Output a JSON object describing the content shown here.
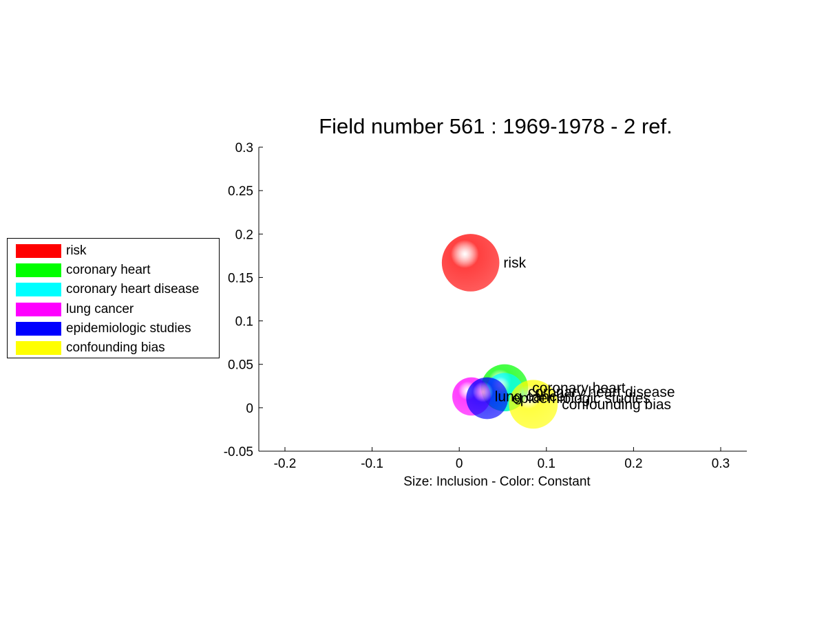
{
  "chart_data": {
    "type": "scatter",
    "title": "Field number 561 : 1969-1978  - 2 ref.",
    "xlabel": "Size: Inclusion - Color: Constant",
    "ylabel": "",
    "xlim": [
      -0.23,
      0.33
    ],
    "ylim": [
      -0.05,
      0.3
    ],
    "xticks": [
      -0.2,
      -0.1,
      0,
      0.1,
      0.2,
      0.3
    ],
    "xtick_labels": [
      "-0.2",
      "-0.1",
      "0",
      "0.1",
      "0.2",
      "0.3"
    ],
    "yticks": [
      -0.05,
      0,
      0.05,
      0.1,
      0.15,
      0.2,
      0.25,
      0.3
    ],
    "ytick_labels": [
      "-0.05",
      "0",
      "0.05",
      "0.1",
      "0.15",
      "0.2",
      "0.25",
      "0.3"
    ],
    "grid": false,
    "legend_position": "left",
    "series": [
      {
        "name": "risk",
        "color": "#ff0000",
        "x": 0.013,
        "y": 0.167,
        "size": 0.033
      },
      {
        "name": "coronary heart",
        "color": "#00ff00",
        "x": 0.052,
        "y": 0.023,
        "size": 0.027
      },
      {
        "name": "coronary heart disease",
        "color": "#00ffff",
        "x": 0.052,
        "y": 0.018,
        "size": 0.022
      },
      {
        "name": "lung cancer",
        "color": "#ff00ff",
        "x": 0.014,
        "y": 0.013,
        "size": 0.022
      },
      {
        "name": "epidemiologic studies",
        "color": "#0000ff",
        "x": 0.032,
        "y": 0.011,
        "size": 0.024
      },
      {
        "name": "confounding bias",
        "color": "#ffff00",
        "x": 0.085,
        "y": 0.004,
        "size": 0.028
      }
    ]
  }
}
